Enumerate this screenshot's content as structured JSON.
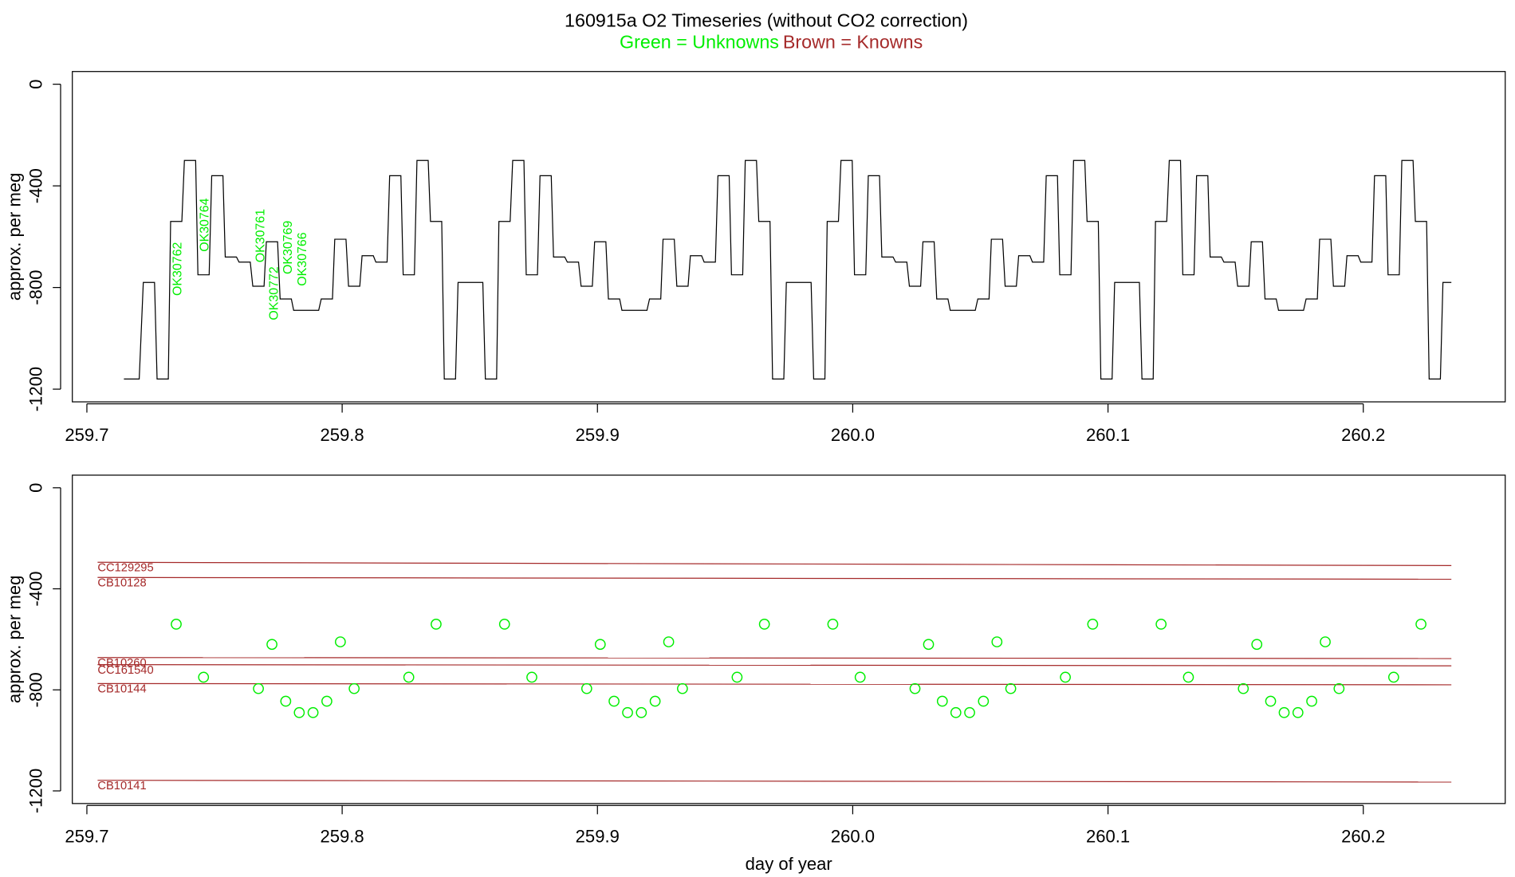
{
  "chart_data": [
    {
      "type": "line",
      "title": "160915a   O2 Timeseries (without CO2 correction)",
      "legend": [
        {
          "name": "Green = Unknowns",
          "color": "#00ee00"
        },
        {
          "name": "Brown = Knowns",
          "color": "#a52a2a"
        }
      ],
      "ylabel": "approx. per meg",
      "xlim": [
        259.6943,
        260.2556
      ],
      "ylim": [
        -1250,
        50
      ],
      "xticks": [
        259.7,
        259.8,
        259.9,
        {
          "value": 260,
          "label": "260.0"
        },
        260.1,
        260.2
      ],
      "yticks": [
        0,
        -400,
        -800,
        -1200
      ],
      "annotations": [
        "OK30762",
        "OK30764",
        "OK30761",
        "OK30772",
        "OK30769",
        "OK30766"
      ],
      "series": [
        {
          "color": "#000000",
          "x": [
            259.7145,
            259.7205,
            259.7221,
            259.7265,
            259.7275,
            259.7319,
            259.7328,
            259.7372,
            259.7382,
            259.7426,
            259.7435,
            259.7479,
            259.7489,
            259.7533,
            259.7542,
            259.7586,
            259.7596,
            259.764,
            259.765,
            259.7694,
            259.7703,
            259.7747,
            259.7757,
            259.7801,
            259.781,
            259.7854,
            259.7864,
            259.7908,
            259.7918,
            259.7962,
            259.7971,
            259.8015,
            259.8025,
            259.8069,
            259.8078,
            259.8122,
            259.8132,
            259.8176,
            259.8186,
            259.823,
            259.8239,
            259.8283,
            259.8293,
            259.8337,
            259.8346,
            259.839,
            259.84,
            259.8444,
            259.8454,
            259.8498,
            259.8507,
            259.8551,
            259.8561,
            259.8605,
            259.8614,
            259.8658,
            259.8668,
            259.8712,
            259.8721,
            259.8765,
            259.8775,
            259.8819,
            259.8828,
            259.8872,
            259.8882,
            259.8926,
            259.8936,
            259.898,
            259.8989,
            259.9033,
            259.9043,
            259.9087,
            259.9096,
            259.914,
            259.915,
            259.9194,
            259.9204,
            259.9248,
            259.9257,
            259.9301,
            259.9311,
            259.9355,
            259.9364,
            259.9408,
            259.9418,
            259.9462,
            259.9472,
            259.9516,
            259.9525,
            259.9569,
            259.9579,
            259.9623,
            259.9632,
            259.9676,
            259.9686,
            259.973,
            259.974,
            259.9784,
            259.9793,
            259.9837,
            259.9847,
            259.9891,
            259.99,
            259.9944,
            259.9954,
            259.9998,
            260.0007,
            260.0051,
            260.0061,
            260.0105,
            260.0114,
            260.0158,
            260.0168,
            260.0212,
            260.0222,
            260.0266,
            260.0275,
            260.0319,
            260.0329,
            260.0373,
            260.0382,
            260.0426,
            260.0436,
            260.048,
            260.049,
            260.0534,
            260.0543,
            260.0587,
            260.0597,
            260.0641,
            260.065,
            260.0694,
            260.0704,
            260.0748,
            260.0758,
            260.0802,
            260.0811,
            260.0855,
            260.0865,
            260.0909,
            260.0918,
            260.0962,
            260.0972,
            260.1016,
            260.1026,
            260.107,
            260.1079,
            260.1123,
            260.1133,
            260.1177,
            260.1186,
            260.123,
            260.124,
            260.1284,
            260.1293,
            260.1337,
            260.1347,
            260.1391,
            260.14,
            260.1444,
            260.1454,
            260.1498,
            260.1508,
            260.1552,
            260.1561,
            260.1605,
            260.1615,
            260.1659,
            260.1668,
            260.1712,
            260.1722,
            260.1766,
            260.1776,
            260.182,
            260.1829,
            260.1873,
            260.1883,
            260.1927,
            260.1936,
            260.198,
            260.199,
            260.2034,
            260.2044,
            260.2088,
            260.2097,
            260.2141,
            260.2151,
            260.2195,
            260.2204,
            260.2248,
            260.2258,
            260.2302,
            260.2312,
            260.2345
          ],
          "values": [
            -1160,
            -1160,
            -780,
            -780,
            -1160,
            -1160,
            -540,
            -540,
            -300,
            -300,
            -750,
            -750,
            -360,
            -360,
            -680,
            -680,
            -700,
            -700,
            -795,
            -795,
            -620,
            -620,
            -845,
            -845,
            -890,
            -890,
            -890,
            -890,
            -845,
            -845,
            -610,
            -610,
            -795,
            -795,
            -675,
            -675,
            -700,
            -700,
            -360,
            -360,
            -750,
            -750,
            -300,
            -300,
            -540,
            -540,
            -1160,
            -1160,
            -780,
            -780,
            -780,
            -780,
            -1160,
            -1160,
            -540,
            -540,
            -300,
            -300,
            -750,
            -750,
            -360,
            -360,
            -680,
            -680,
            -700,
            -700,
            -795,
            -795,
            -620,
            -620,
            -845,
            -845,
            -890,
            -890,
            -890,
            -890,
            -845,
            -845,
            -610,
            -610,
            -795,
            -795,
            -675,
            -675,
            -700,
            -700,
            -360,
            -360,
            -750,
            -750,
            -300,
            -300,
            -540,
            -540,
            -1160,
            -1160,
            -780,
            -780,
            -780,
            -780,
            -1160,
            -1160,
            -540,
            -540,
            -300,
            -300,
            -750,
            -750,
            -360,
            -360,
            -680,
            -680,
            -700,
            -700,
            -795,
            -795,
            -620,
            -620,
            -845,
            -845,
            -890,
            -890,
            -890,
            -890,
            -845,
            -845,
            -610,
            -610,
            -795,
            -795,
            -675,
            -675,
            -700,
            -700,
            -360,
            -360,
            -750,
            -750,
            -300,
            -300,
            -540,
            -540,
            -1160,
            -1160,
            -780,
            -780,
            -780,
            -780,
            -1160,
            -1160,
            -540,
            -540,
            -300,
            -300,
            -750,
            -750,
            -360,
            -360,
            -680,
            -680,
            -700,
            -700,
            -795,
            -795,
            -620,
            -620,
            -845,
            -845,
            -890,
            -890,
            -890,
            -890,
            -845,
            -845,
            -610,
            -610,
            -795,
            -795,
            -675,
            -675,
            -700,
            -700,
            -360,
            -360,
            -750,
            -750,
            -300,
            -300,
            -540,
            -540,
            -1160,
            -1160,
            -780,
            -780
          ]
        }
      ]
    },
    {
      "type": "scatter",
      "ylabel": "approx. per meg",
      "xlabel": "day of year",
      "xlim": [
        259.6943,
        260.2556
      ],
      "ylim": [
        -1250,
        50
      ],
      "xticks": [
        259.7,
        259.8,
        259.9,
        {
          "value": 260,
          "label": "260.0"
        },
        260.1,
        260.2
      ],
      "yticks": [
        0,
        -400,
        -800,
        -1200
      ],
      "series": [
        {
          "color": "#00ee00",
          "x": [
            259.735,
            259.7457,
            259.7672,
            259.7725,
            259.7779,
            259.7832,
            259.7886,
            259.794,
            259.7993,
            259.8047,
            259.8261,
            259.8368,
            259.8636,
            259.8743,
            259.8958,
            259.9011,
            259.9065,
            259.9118,
            259.9172,
            259.9226,
            259.9279,
            259.9333,
            259.9547,
            259.9654,
            259.9922,
            260.0029,
            260.0244,
            260.0297,
            260.0351,
            260.0404,
            260.0458,
            260.0512,
            260.0565,
            260.0619,
            260.0833,
            260.094,
            260.1208,
            260.1315,
            260.153,
            260.1583,
            260.1637,
            260.169,
            260.1744,
            260.1798,
            260.1851,
            260.1905,
            260.2119,
            260.2226
          ],
          "values": [
            -540,
            -750,
            -795,
            -620,
            -845,
            -890,
            -890,
            -845,
            -610,
            -795,
            -750,
            -540,
            -540,
            -750,
            -795,
            -620,
            -845,
            -890,
            -890,
            -845,
            -610,
            -795,
            -750,
            -540,
            -540,
            -750,
            -795,
            -620,
            -845,
            -890,
            -890,
            -845,
            -610,
            -795,
            -750,
            -540,
            -540,
            -750,
            -795,
            -620,
            -845,
            -890,
            -890,
            -845,
            -610,
            -795,
            -750,
            -540
          ]
        }
      ],
      "reference_lines": [
        {
          "name": "CC129295",
          "color": "#a52a2a",
          "x": [
            259.7042,
            260.2345
          ],
          "values": [
            -295,
            -308
          ]
        },
        {
          "name": "CB10128",
          "color": "#a52a2a",
          "x": [
            259.7042,
            260.2345
          ],
          "values": [
            -355,
            -362
          ]
        },
        {
          "name": "CB10260",
          "color": "#a52a2a",
          "x": [
            259.7042,
            260.2345
          ],
          "values": [
            -672,
            -676
          ]
        },
        {
          "name": "CC161540",
          "color": "#a52a2a",
          "x": [
            259.7042,
            260.2345
          ],
          "values": [
            -700,
            -705
          ]
        },
        {
          "name": "CB10144",
          "color": "#a52a2a",
          "x": [
            259.7042,
            260.2345
          ],
          "values": [
            -775,
            -780
          ]
        },
        {
          "name": "CB10141",
          "color": "#a52a2a",
          "x": [
            259.7042,
            260.2345
          ],
          "values": [
            -1158,
            -1165
          ]
        }
      ]
    }
  ]
}
